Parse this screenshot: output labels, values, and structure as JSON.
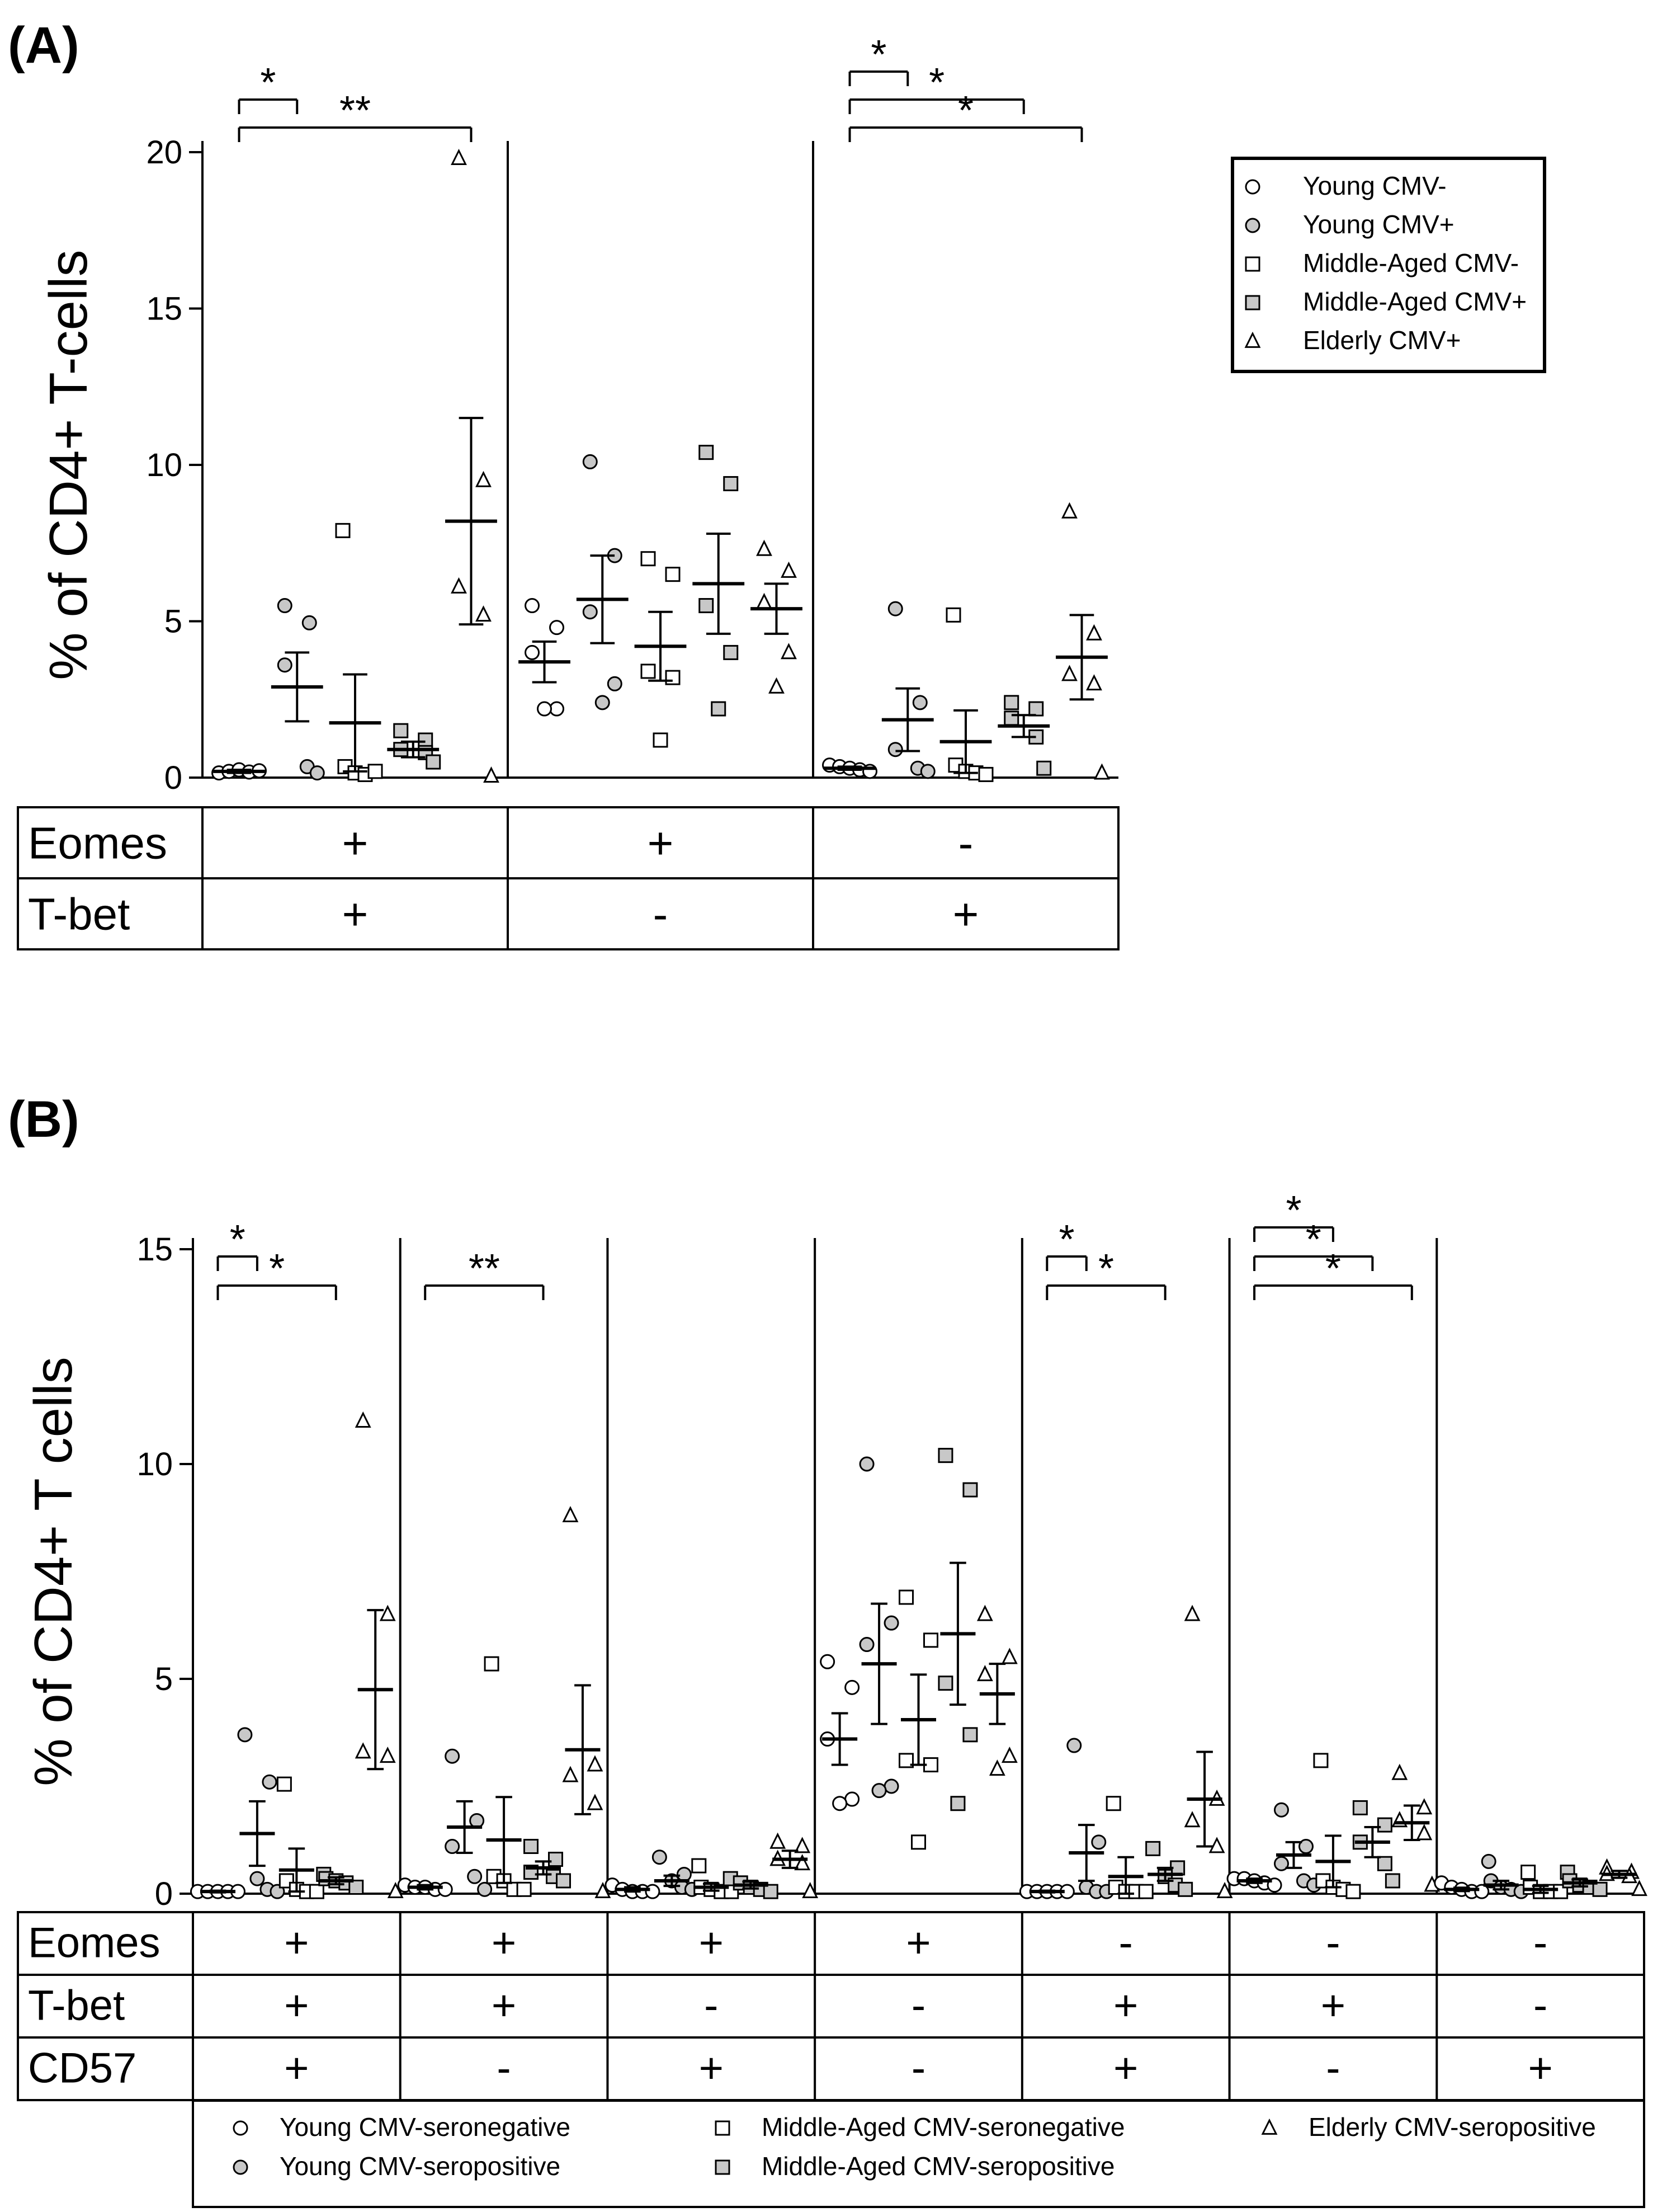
{
  "panelA": {
    "label": "(A)",
    "ylabel": "% of CD4+ T-cells",
    "ylim": [
      0,
      20
    ],
    "yticks": [
      0,
      5,
      10,
      15,
      20
    ],
    "legend": [
      {
        "symbol": "circle-open",
        "label": "Young CMV-"
      },
      {
        "symbol": "circle-gray",
        "label": "Young CMV+"
      },
      {
        "symbol": "square-open",
        "label": "Middle-Aged CMV-"
      },
      {
        "symbol": "square-gray",
        "label": "Middle-Aged CMV+"
      },
      {
        "symbol": "triangle-open",
        "label": "Elderly CMV+"
      }
    ],
    "table": {
      "rows": [
        {
          "label": "Eomes",
          "values": [
            "+",
            "+",
            "-"
          ]
        },
        {
          "label": "T-bet",
          "values": [
            "+",
            "-",
            "+"
          ]
        }
      ]
    }
  },
  "panelB": {
    "label": "(B)",
    "ylabel": "% of CD4+ T cells",
    "ylim": [
      0,
      15
    ],
    "yticks": [
      0,
      5,
      10,
      15
    ],
    "legend": [
      {
        "symbol": "circle-open",
        "label": "Young CMV-seronegative"
      },
      {
        "symbol": "circle-gray",
        "label": "Young CMV-seropositive"
      },
      {
        "symbol": "square-open",
        "label": "Middle-Aged CMV-seronegative"
      },
      {
        "symbol": "square-gray",
        "label": "Middle-Aged CMV-seropositive"
      },
      {
        "symbol": "triangle-open",
        "label": "Elderly CMV-seropositive"
      }
    ],
    "table": {
      "rows": [
        {
          "label": "Eomes",
          "values": [
            "+",
            "+",
            "+",
            "+",
            "-",
            "-",
            "-"
          ]
        },
        {
          "label": "T-bet",
          "values": [
            "+",
            "+",
            "-",
            "-",
            "+",
            "+",
            "-"
          ]
        },
        {
          "label": "CD57",
          "values": [
            "+",
            "-",
            "+",
            "-",
            "+",
            "-",
            "+"
          ]
        }
      ]
    }
  },
  "colors": {
    "gray_fill": "#c8c8c8",
    "open_fill": "#ffffff",
    "stroke": "#000000"
  },
  "chart_data": [
    {
      "type": "scatter",
      "title": "(A)",
      "xlabel": "",
      "ylabel": "% of CD4+ T-cells",
      "ylim": [
        0,
        20
      ],
      "groups": [
        "Young CMV-",
        "Young CMV+",
        "Middle-Aged CMV-",
        "Middle-Aged CMV+",
        "Elderly CMV+"
      ],
      "series": [
        {
          "name": "Eomes+ T-bet+",
          "groups": [
            {
              "mean": 0.2,
              "sem": 0.05,
              "points": [
                0.15,
                0.2,
                0.25,
                0.18,
                0.22
              ]
            },
            {
              "mean": 2.9,
              "sem": 1.1,
              "points": [
                5.5,
                4.95,
                3.6,
                0.35,
                0.15
              ]
            },
            {
              "mean": 1.75,
              "sem": 1.55,
              "points": [
                7.9,
                0.35,
                0.15,
                0.1,
                0.2
              ]
            },
            {
              "mean": 0.9,
              "sem": 0.25,
              "points": [
                1.5,
                1.2,
                0.9,
                0.8,
                0.5
              ]
            },
            {
              "mean": 8.2,
              "sem": 3.3,
              "points": [
                19.8,
                9.5,
                6.1,
                5.2,
                0.05
              ]
            }
          ]
        },
        {
          "name": "Eomes+ T-bet-",
          "groups": [
            {
              "mean": 3.7,
              "sem": 0.65,
              "points": [
                5.5,
                4.8,
                4.0,
                2.2,
                2.2
              ]
            },
            {
              "mean": 5.7,
              "sem": 1.4,
              "points": [
                10.1,
                7.1,
                5.3,
                3.0,
                2.4
              ]
            },
            {
              "mean": 4.2,
              "sem": 1.1,
              "points": [
                7.0,
                6.5,
                3.4,
                3.2,
                1.2
              ]
            },
            {
              "mean": 6.2,
              "sem": 1.6,
              "points": [
                10.4,
                9.4,
                5.5,
                4.0,
                2.2
              ]
            },
            {
              "mean": 5.4,
              "sem": 0.8,
              "points": [
                7.3,
                6.6,
                5.6,
                4.0,
                2.9
              ]
            }
          ]
        },
        {
          "name": "Eomes- T-bet+",
          "groups": [
            {
              "mean": 0.3,
              "sem": 0.05,
              "points": [
                0.4,
                0.35,
                0.3,
                0.25,
                0.2
              ]
            },
            {
              "mean": 1.85,
              "sem": 1.0,
              "points": [
                5.4,
                2.4,
                0.9,
                0.3,
                0.2
              ]
            },
            {
              "mean": 1.15,
              "sem": 1.0,
              "points": [
                5.2,
                0.4,
                0.2,
                0.15,
                0.1
              ]
            },
            {
              "mean": 1.65,
              "sem": 0.35,
              "points": [
                2.4,
                2.2,
                1.9,
                1.3,
                0.3
              ]
            },
            {
              "mean": 3.85,
              "sem": 1.35,
              "points": [
                8.5,
                4.6,
                3.3,
                3.0,
                0.15
              ]
            }
          ]
        }
      ],
      "significance": [
        {
          "panel": 1,
          "from": 1,
          "to": 2,
          "label": "*"
        },
        {
          "panel": 1,
          "from": 1,
          "to": 5,
          "label": "**"
        },
        {
          "panel": 3,
          "from": 1,
          "to": 2,
          "label": "*"
        },
        {
          "panel": 3,
          "from": 1,
          "to": 4,
          "label": "*"
        },
        {
          "panel": 3,
          "from": 1,
          "to": 5,
          "label": "*"
        }
      ]
    },
    {
      "type": "scatter",
      "title": "(B)",
      "xlabel": "",
      "ylabel": "% of CD4+ T cells",
      "ylim": [
        0,
        15
      ],
      "groups": [
        "Young CMV-seronegative",
        "Young CMV-seropositive",
        "Middle-Aged CMV-seronegative",
        "Middle-Aged CMV-seropositive",
        "Elderly CMV-seropositive"
      ],
      "series": [
        {
          "name": "Eomes+ T-bet+ CD57+",
          "groups": [
            {
              "mean": 0.05,
              "sem": 0.02,
              "points": [
                0.05,
                0.05,
                0.05,
                0.05,
                0.05
              ]
            },
            {
              "mean": 1.4,
              "sem": 0.75,
              "points": [
                3.7,
                2.6,
                0.35,
                0.1,
                0.05
              ]
            },
            {
              "mean": 0.55,
              "sem": 0.5,
              "points": [
                2.55,
                0.3,
                0.1,
                0.05,
                0.05
              ]
            },
            {
              "mean": 0.3,
              "sem": 0.08,
              "points": [
                0.45,
                0.35,
                0.3,
                0.25,
                0.15
              ]
            },
            {
              "mean": 4.75,
              "sem": 1.85,
              "points": [
                11.0,
                6.5,
                3.3,
                3.2,
                0.05
              ]
            }
          ]
        },
        {
          "name": "Eomes+ T-bet+ CD57-",
          "groups": [
            {
              "mean": 0.15,
              "sem": 0.05,
              "points": [
                0.2,
                0.15,
                0.15,
                0.1,
                0.1
              ]
            },
            {
              "mean": 1.55,
              "sem": 0.6,
              "points": [
                3.2,
                1.7,
                1.1,
                0.4,
                0.1
              ]
            },
            {
              "mean": 1.25,
              "sem": 1.0,
              "points": [
                5.35,
                0.4,
                0.3,
                0.1,
                0.1
              ]
            },
            {
              "mean": 0.6,
              "sem": 0.15,
              "points": [
                1.1,
                0.8,
                0.5,
                0.4,
                0.3
              ]
            },
            {
              "mean": 3.35,
              "sem": 1.5,
              "points": [
                8.8,
                3.0,
                2.75,
                2.1,
                0.05
              ]
            }
          ]
        },
        {
          "name": "Eomes+ T-bet- CD57+",
          "groups": [
            {
              "mean": 0.1,
              "sem": 0.05,
              "points": [
                0.2,
                0.1,
                0.05,
                0.05,
                0.05
              ]
            },
            {
              "mean": 0.3,
              "sem": 0.12,
              "points": [
                0.85,
                0.45,
                0.3,
                0.15,
                0.1
              ]
            },
            {
              "mean": 0.15,
              "sem": 0.08,
              "points": [
                0.65,
                0.15,
                0.1,
                0.05,
                0.05
              ]
            },
            {
              "mean": 0.2,
              "sem": 0.08,
              "points": [
                0.35,
                0.25,
                0.15,
                0.1,
                0.05
              ]
            },
            {
              "mean": 0.8,
              "sem": 0.2,
              "points": [
                1.2,
                1.1,
                0.8,
                0.7,
                0.05
              ]
            }
          ]
        },
        {
          "name": "Eomes+ T-bet- CD57-",
          "groups": [
            {
              "mean": 3.6,
              "sem": 0.6,
              "points": [
                5.4,
                4.8,
                3.6,
                2.2,
                2.1
              ]
            },
            {
              "mean": 5.35,
              "sem": 1.4,
              "points": [
                10.0,
                6.3,
                5.8,
                2.5,
                2.4
              ]
            },
            {
              "mean": 4.05,
              "sem": 1.05,
              "points": [
                6.9,
                5.9,
                3.1,
                3.0,
                1.2
              ]
            },
            {
              "mean": 6.05,
              "sem": 1.65,
              "points": [
                10.2,
                9.4,
                4.9,
                3.7,
                2.1
              ]
            },
            {
              "mean": 4.65,
              "sem": 0.7,
              "points": [
                6.5,
                5.5,
                5.1,
                3.2,
                2.9
              ]
            }
          ]
        },
        {
          "name": "Eomes- T-bet+ CD57+",
          "groups": [
            {
              "mean": 0.05,
              "sem": 0.02,
              "points": [
                0.05,
                0.05,
                0.05,
                0.05,
                0.05
              ]
            },
            {
              "mean": 0.95,
              "sem": 0.65,
              "points": [
                3.45,
                1.2,
                0.15,
                0.05,
                0.05
              ]
            },
            {
              "mean": 0.4,
              "sem": 0.45,
              "points": [
                2.1,
                0.15,
                0.05,
                0.05,
                0.05
              ]
            },
            {
              "mean": 0.45,
              "sem": 0.15,
              "points": [
                1.05,
                0.6,
                0.4,
                0.2,
                0.1
              ]
            },
            {
              "mean": 2.2,
              "sem": 1.1,
              "points": [
                6.5,
                2.2,
                1.7,
                1.1,
                0.05
              ]
            }
          ]
        },
        {
          "name": "Eomes- T-bet+ CD57-",
          "groups": [
            {
              "mean": 0.3,
              "sem": 0.05,
              "points": [
                0.35,
                0.35,
                0.3,
                0.25,
                0.2
              ]
            },
            {
              "mean": 0.9,
              "sem": 0.3,
              "points": [
                1.95,
                1.1,
                0.7,
                0.3,
                0.2
              ]
            },
            {
              "mean": 0.75,
              "sem": 0.6,
              "points": [
                3.1,
                0.3,
                0.15,
                0.1,
                0.05
              ]
            },
            {
              "mean": 1.2,
              "sem": 0.35,
              "points": [
                2.0,
                1.6,
                1.2,
                0.7,
                0.3
              ]
            },
            {
              "mean": 1.65,
              "sem": 0.4,
              "points": [
                2.8,
                2.0,
                1.7,
                1.4,
                0.2
              ]
            }
          ]
        },
        {
          "name": "Eomes- T-bet- CD57+",
          "groups": [
            {
              "mean": 0.1,
              "sem": 0.04,
              "points": [
                0.25,
                0.15,
                0.1,
                0.05,
                0.05
              ]
            },
            {
              "mean": 0.2,
              "sem": 0.1,
              "points": [
                0.75,
                0.3,
                0.15,
                0.1,
                0.05
              ]
            },
            {
              "mean": 0.1,
              "sem": 0.08,
              "points": [
                0.5,
                0.15,
                0.05,
                0.05,
                0.05
              ]
            },
            {
              "mean": 0.25,
              "sem": 0.08,
              "points": [
                0.5,
                0.3,
                0.2,
                0.15,
                0.1
              ]
            },
            {
              "mean": 0.45,
              "sem": 0.08,
              "points": [
                0.6,
                0.5,
                0.45,
                0.4,
                0.1
              ]
            }
          ]
        }
      ],
      "significance": [
        {
          "panel": 1,
          "from": 1,
          "to": 2,
          "label": "*"
        },
        {
          "panel": 1,
          "from": 1,
          "to": 4,
          "label": "*"
        },
        {
          "panel": 2,
          "from": 1,
          "to": 4,
          "label": "**"
        },
        {
          "panel": 5,
          "from": 1,
          "to": 2,
          "label": "*"
        },
        {
          "panel": 5,
          "from": 1,
          "to": 4,
          "label": "*"
        },
        {
          "panel": 6,
          "from": 1,
          "to": 3,
          "label": "*"
        },
        {
          "panel": 6,
          "from": 1,
          "to": 4,
          "label": "*"
        },
        {
          "panel": 6,
          "from": 1,
          "to": 5,
          "label": "*"
        }
      ]
    }
  ]
}
